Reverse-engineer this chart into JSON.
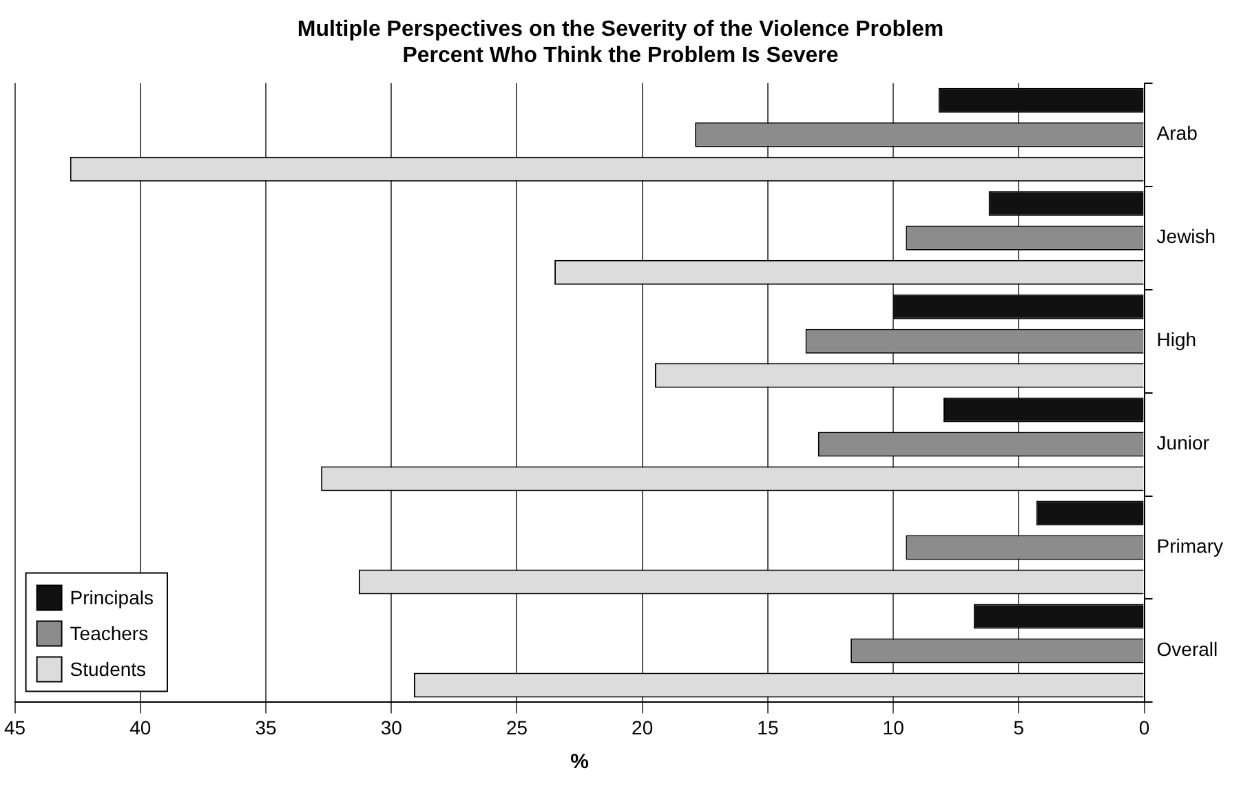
{
  "chart_data": {
    "type": "bar",
    "orientation": "horizontal",
    "title": "Multiple Perspectives on the Severity of the Violence Problem",
    "subtitle": "Percent Who Think the Problem Is Severe",
    "xlabel": "%",
    "categories": [
      "Arab",
      "Jewish",
      "High",
      "Junior",
      "Primary",
      "Overall"
    ],
    "series": [
      {
        "name": "Principals",
        "color": "#111111",
        "values": [
          8.2,
          6.2,
          10.0,
          8.0,
          4.3,
          6.8
        ]
      },
      {
        "name": "Teachers",
        "color": "#8c8c8c",
        "values": [
          17.9,
          9.5,
          13.5,
          13.0,
          9.5,
          11.7
        ]
      },
      {
        "name": "Students",
        "color": "#dcdcdc",
        "values": [
          42.8,
          23.5,
          19.5,
          32.8,
          31.3,
          29.1
        ]
      }
    ],
    "xlim": [
      45,
      0
    ],
    "xticks": [
      45,
      40,
      35,
      30,
      25,
      20,
      15,
      10,
      5,
      0
    ],
    "grid": "x",
    "legend": "bottom left"
  }
}
